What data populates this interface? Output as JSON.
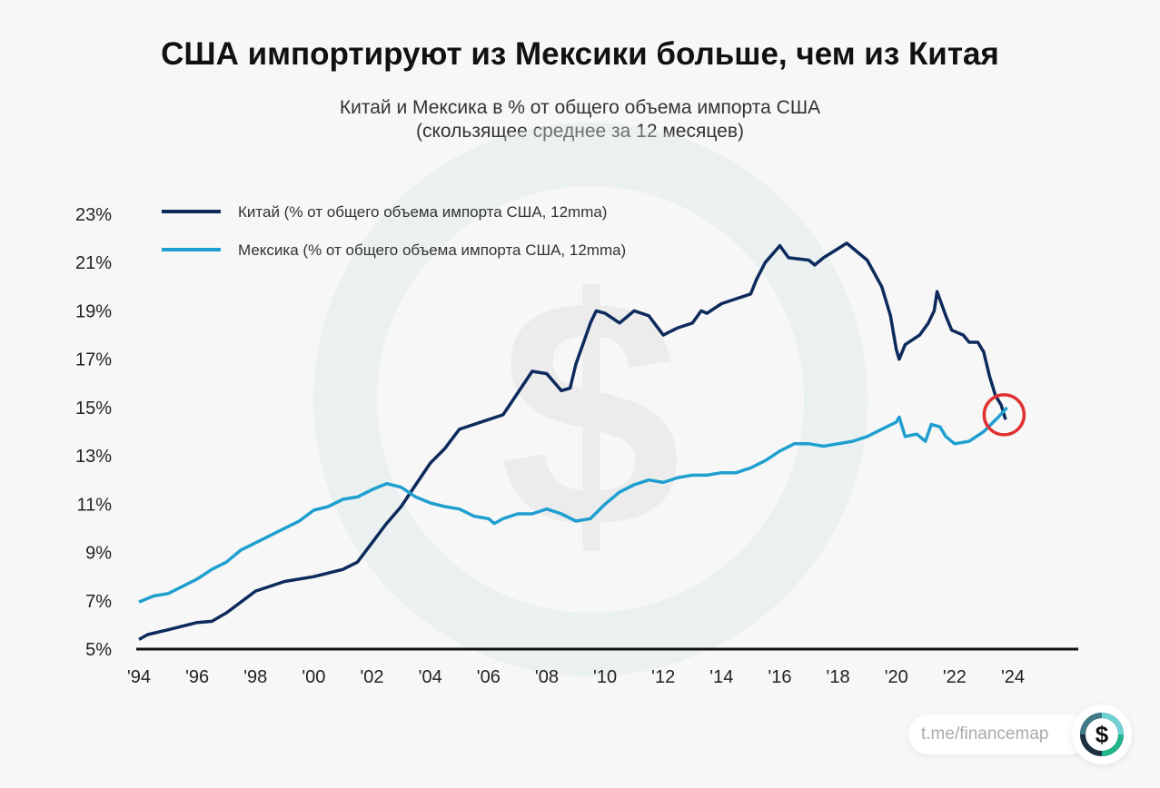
{
  "chart_data": {
    "type": "line",
    "title": "США импортируют из Мексики больше, чем из Китая",
    "subtitle_line1": "Китай и Мексика в % от общего объема импорта США",
    "subtitle_line2": "(скользящее среднее за 12 месяцев)",
    "xlabel": "",
    "ylabel": "",
    "xlim": [
      1994,
      2024
    ],
    "ylim": [
      5,
      23
    ],
    "x_ticks": [
      1994,
      1996,
      1998,
      2000,
      2002,
      2004,
      2006,
      2008,
      2010,
      2012,
      2014,
      2016,
      2018,
      2020,
      2022,
      2024
    ],
    "x_tick_labels": [
      "'94",
      "'96",
      "'98",
      "'00",
      "'02",
      "'04",
      "'06",
      "'08",
      "'10",
      "'12",
      "'14",
      "'16",
      "'18",
      "'20",
      "'22",
      "'24"
    ],
    "y_ticks": [
      5,
      7,
      9,
      11,
      13,
      15,
      17,
      19,
      21,
      23
    ],
    "y_tick_labels": [
      "5%",
      "7%",
      "9%",
      "11%",
      "13%",
      "15%",
      "17%",
      "19%",
      "21%",
      "23%"
    ],
    "legend_position": "top-left",
    "series": [
      {
        "name": "Китай (% от общего объема импорта США, 12mma)",
        "color": "#0d2a5c",
        "points": [
          [
            1994,
            5.4
          ],
          [
            1994.3,
            5.6
          ],
          [
            1995,
            5.8
          ],
          [
            1996,
            6.1
          ],
          [
            1996.5,
            6.15
          ],
          [
            1997,
            6.5
          ],
          [
            1998,
            7.4
          ],
          [
            1999,
            7.8
          ],
          [
            2000,
            8.0
          ],
          [
            2001,
            8.3
          ],
          [
            2001.5,
            8.6
          ],
          [
            2002,
            9.4
          ],
          [
            2002.5,
            10.2
          ],
          [
            2003,
            10.9
          ],
          [
            2003.5,
            11.8
          ],
          [
            2004,
            12.7
          ],
          [
            2004.5,
            13.3
          ],
          [
            2005,
            14.1
          ],
          [
            2006,
            14.5
          ],
          [
            2006.5,
            14.7
          ],
          [
            2007,
            15.6
          ],
          [
            2007.5,
            16.5
          ],
          [
            2008,
            16.4
          ],
          [
            2008.5,
            15.7
          ],
          [
            2008.8,
            15.8
          ],
          [
            2009,
            16.8
          ],
          [
            2009.5,
            18.5
          ],
          [
            2009.7,
            19.0
          ],
          [
            2010,
            18.9
          ],
          [
            2010.5,
            18.5
          ],
          [
            2011,
            19.0
          ],
          [
            2011.5,
            18.8
          ],
          [
            2012,
            18.0
          ],
          [
            2012.5,
            18.3
          ],
          [
            2013,
            18.5
          ],
          [
            2013.3,
            19.0
          ],
          [
            2013.5,
            18.9
          ],
          [
            2014,
            19.3
          ],
          [
            2014.5,
            19.5
          ],
          [
            2015,
            19.7
          ],
          [
            2015.2,
            20.3
          ],
          [
            2015.5,
            21.0
          ],
          [
            2016,
            21.7
          ],
          [
            2016.3,
            21.2
          ],
          [
            2017,
            21.1
          ],
          [
            2017.2,
            20.9
          ],
          [
            2017.5,
            21.2
          ],
          [
            2018.3,
            21.8
          ],
          [
            2018.6,
            21.5
          ],
          [
            2019,
            21.1
          ],
          [
            2019.5,
            20.0
          ],
          [
            2019.8,
            18.8
          ],
          [
            2020,
            17.4
          ],
          [
            2020.1,
            17.0
          ],
          [
            2020.3,
            17.6
          ],
          [
            2020.8,
            18.0
          ],
          [
            2021.1,
            18.5
          ],
          [
            2021.3,
            19.0
          ],
          [
            2021.4,
            19.8
          ],
          [
            2021.7,
            18.8
          ],
          [
            2021.9,
            18.2
          ],
          [
            2022.3,
            18.0
          ],
          [
            2022.5,
            17.7
          ],
          [
            2022.8,
            17.7
          ],
          [
            2023,
            17.3
          ],
          [
            2023.2,
            16.3
          ],
          [
            2023.4,
            15.5
          ],
          [
            2023.6,
            15.1
          ],
          [
            2023.75,
            14.5
          ]
        ]
      },
      {
        "name": "Мексика (% от общего объема импорта США, 12mma)",
        "color": "#1f9fcf",
        "points": [
          [
            1994,
            6.95
          ],
          [
            1994.5,
            7.2
          ],
          [
            1995,
            7.3
          ],
          [
            1995.5,
            7.6
          ],
          [
            1996,
            7.9
          ],
          [
            1996.5,
            8.3
          ],
          [
            1997,
            8.6
          ],
          [
            1997.5,
            9.1
          ],
          [
            1998,
            9.4
          ],
          [
            1998.5,
            9.7
          ],
          [
            1999,
            10.0
          ],
          [
            1999.5,
            10.3
          ],
          [
            2000,
            10.75
          ],
          [
            2000.5,
            10.9
          ],
          [
            2001,
            11.2
          ],
          [
            2001.5,
            11.3
          ],
          [
            2002,
            11.6
          ],
          [
            2002.5,
            11.85
          ],
          [
            2003,
            11.7
          ],
          [
            2003.5,
            11.3
          ],
          [
            2004,
            11.05
          ],
          [
            2004.5,
            10.9
          ],
          [
            2005,
            10.8
          ],
          [
            2005.5,
            10.5
          ],
          [
            2006,
            10.4
          ],
          [
            2006.2,
            10.2
          ],
          [
            2006.5,
            10.4
          ],
          [
            2007,
            10.6
          ],
          [
            2007.5,
            10.6
          ],
          [
            2008,
            10.8
          ],
          [
            2008.5,
            10.6
          ],
          [
            2009,
            10.3
          ],
          [
            2009.5,
            10.4
          ],
          [
            2010,
            11.0
          ],
          [
            2010.5,
            11.5
          ],
          [
            2011,
            11.8
          ],
          [
            2011.5,
            12.0
          ],
          [
            2012,
            11.9
          ],
          [
            2012.5,
            12.1
          ],
          [
            2013,
            12.2
          ],
          [
            2013.5,
            12.2
          ],
          [
            2014,
            12.3
          ],
          [
            2014.5,
            12.3
          ],
          [
            2015,
            12.5
          ],
          [
            2015.5,
            12.8
          ],
          [
            2016,
            13.2
          ],
          [
            2016.5,
            13.5
          ],
          [
            2017,
            13.5
          ],
          [
            2017.5,
            13.4
          ],
          [
            2018,
            13.5
          ],
          [
            2018.5,
            13.6
          ],
          [
            2019,
            13.8
          ],
          [
            2019.5,
            14.1
          ],
          [
            2020,
            14.4
          ],
          [
            2020.1,
            14.6
          ],
          [
            2020.3,
            13.8
          ],
          [
            2020.7,
            13.9
          ],
          [
            2021,
            13.6
          ],
          [
            2021.2,
            14.3
          ],
          [
            2021.5,
            14.2
          ],
          [
            2021.7,
            13.8
          ],
          [
            2022,
            13.5
          ],
          [
            2022.5,
            13.6
          ],
          [
            2023,
            14.0
          ],
          [
            2023.5,
            14.6
          ],
          [
            2023.8,
            15.0
          ]
        ]
      }
    ],
    "annotations": [
      {
        "type": "circle",
        "x": 2023.7,
        "y": 14.7,
        "color": "#e03030"
      }
    ]
  },
  "brand": {
    "link": "t.me/financemap",
    "logo_symbol": "$"
  }
}
